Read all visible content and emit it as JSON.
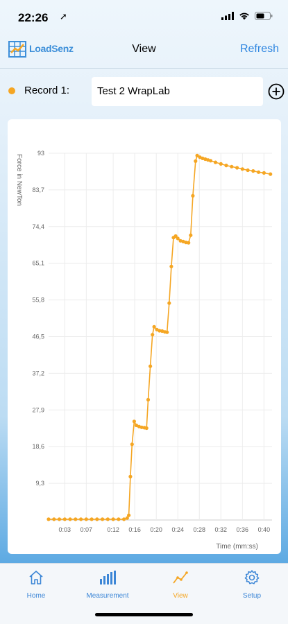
{
  "status": {
    "time": "22:26",
    "location_icon": "location-arrow-icon",
    "signal_icon": "signal-icon",
    "wifi_icon": "wifi-icon",
    "battery_icon": "battery-icon"
  },
  "nav": {
    "logo_text": "LoadSenz",
    "title": "View",
    "refresh": "Refresh"
  },
  "record": {
    "label": "Record 1:",
    "value": "Test 2 WrapLab",
    "dot_color": "#f5a623",
    "add_icon": "plus-circle-icon"
  },
  "chart_data": {
    "type": "line",
    "ylabel": "Force in NewTon",
    "xlabel": "Time (mm:ss)",
    "y_ticks": [
      "9,3",
      "18,6",
      "27,9",
      "37,2",
      "46,5",
      "55,8",
      "65,1",
      "74,4",
      "83,7",
      "93"
    ],
    "x_ticks": [
      "0:03",
      "0:07",
      "0:12",
      "0:16",
      "0:20",
      "0:24",
      "0:28",
      "0:32",
      "0:36",
      "0:40"
    ],
    "ylim": [
      0,
      93
    ],
    "xlim": [
      0,
      41.5
    ],
    "grid": true,
    "line_color": "#f5a623",
    "points": [
      [
        0.0,
        0.2
      ],
      [
        1,
        0.2
      ],
      [
        2,
        0.2
      ],
      [
        3,
        0.2
      ],
      [
        4,
        0.2
      ],
      [
        5,
        0.2
      ],
      [
        6,
        0.2
      ],
      [
        7,
        0.2
      ],
      [
        8,
        0.2
      ],
      [
        9,
        0.2
      ],
      [
        10,
        0.2
      ],
      [
        11,
        0.2
      ],
      [
        12,
        0.2
      ],
      [
        13,
        0.2
      ],
      [
        14,
        0.2
      ],
      [
        14.6,
        0.5
      ],
      [
        14.9,
        1.2
      ],
      [
        15.2,
        11.0
      ],
      [
        15.5,
        19.2
      ],
      [
        15.9,
        25.0
      ],
      [
        16.3,
        24.0
      ],
      [
        16.8,
        23.7
      ],
      [
        17.3,
        23.5
      ],
      [
        17.8,
        23.4
      ],
      [
        18.2,
        23.3
      ],
      [
        18.5,
        30.5
      ],
      [
        18.9,
        39.0
      ],
      [
        19.3,
        47.0
      ],
      [
        19.6,
        49.0
      ],
      [
        20.1,
        48.3
      ],
      [
        20.6,
        48.0
      ],
      [
        21.1,
        47.9
      ],
      [
        21.6,
        47.7
      ],
      [
        22.0,
        47.6
      ],
      [
        22.4,
        55.0
      ],
      [
        22.8,
        64.3
      ],
      [
        23.2,
        71.6
      ],
      [
        23.6,
        72.0
      ],
      [
        24.0,
        71.4
      ],
      [
        24.5,
        70.8
      ],
      [
        25.0,
        70.6
      ],
      [
        25.5,
        70.4
      ],
      [
        26.0,
        70.3
      ],
      [
        26.4,
        72.2
      ],
      [
        26.8,
        82.2
      ],
      [
        27.3,
        91.0
      ],
      [
        27.6,
        92.4
      ],
      [
        28.1,
        92.0
      ],
      [
        28.6,
        91.7
      ],
      [
        29.1,
        91.5
      ],
      [
        29.6,
        91.3
      ],
      [
        30.1,
        91.1
      ],
      [
        31,
        90.7
      ],
      [
        32,
        90.3
      ],
      [
        33,
        89.9
      ],
      [
        34,
        89.6
      ],
      [
        35,
        89.3
      ],
      [
        36,
        89.0
      ],
      [
        37,
        88.7
      ],
      [
        38,
        88.5
      ],
      [
        39,
        88.2
      ],
      [
        40,
        88.0
      ],
      [
        41.2,
        87.7
      ]
    ]
  },
  "tabs": [
    {
      "label": "Home",
      "icon": "home-icon"
    },
    {
      "label": "Measurement",
      "icon": "bar-chart-icon"
    },
    {
      "label": "View",
      "icon": "line-chart-icon"
    },
    {
      "label": "Setup",
      "icon": "gear-icon"
    }
  ],
  "colors": {
    "accent": "#2f86e0",
    "active": "#f5a623"
  }
}
